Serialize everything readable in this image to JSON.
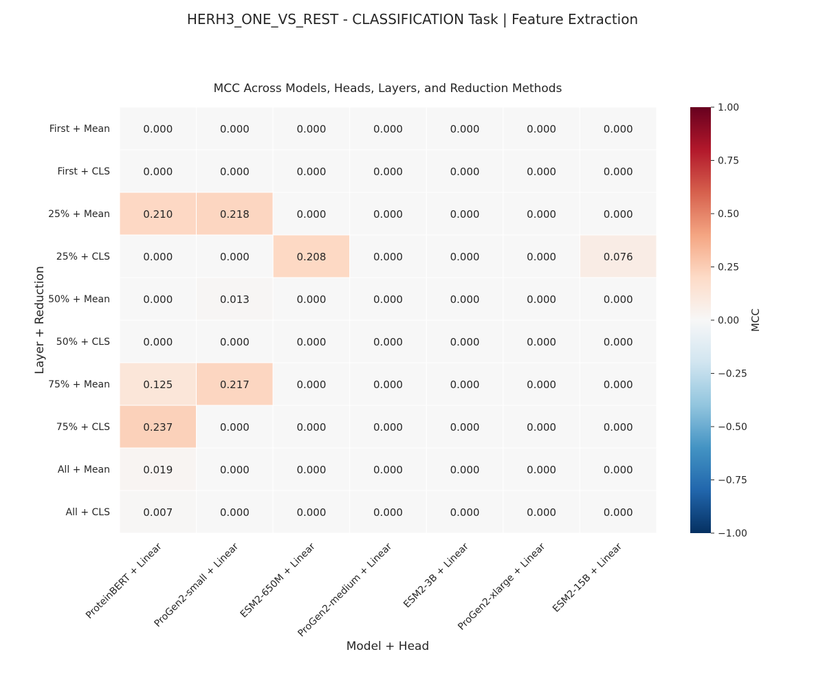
{
  "figure": {
    "suptitle": "HERH3_ONE_VS_REST - CLASSIFICATION Task | Feature Extraction"
  },
  "chart_data": {
    "type": "heatmap",
    "title": "MCC Across Models, Heads, Layers, and Reduction Methods",
    "xlabel": "Model + Head",
    "ylabel": "Layer + Reduction",
    "x_categories": [
      "ProteinBERT + Linear",
      "ProGen2-small + Linear",
      "ESM2-650M + Linear",
      "ProGen2-medium + Linear",
      "ESM2-3B + Linear",
      "ProGen2-xlarge + Linear",
      "ESM2-15B + Linear"
    ],
    "y_categories": [
      "First + Mean",
      "First + CLS",
      "25% + Mean",
      "25% + CLS",
      "50% + Mean",
      "50% + CLS",
      "75% + Mean",
      "75% + CLS",
      "All + Mean",
      "All + CLS"
    ],
    "values": [
      [
        0.0,
        0.0,
        0.0,
        0.0,
        0.0,
        0.0,
        0.0
      ],
      [
        0.0,
        0.0,
        0.0,
        0.0,
        0.0,
        0.0,
        0.0
      ],
      [
        0.21,
        0.218,
        0.0,
        0.0,
        0.0,
        0.0,
        0.0
      ],
      [
        0.0,
        0.0,
        0.208,
        0.0,
        0.0,
        0.0,
        0.076
      ],
      [
        0.0,
        0.013,
        0.0,
        0.0,
        0.0,
        0.0,
        0.0
      ],
      [
        0.0,
        0.0,
        0.0,
        0.0,
        0.0,
        0.0,
        0.0
      ],
      [
        0.125,
        0.217,
        0.0,
        0.0,
        0.0,
        0.0,
        0.0
      ],
      [
        0.237,
        0.0,
        0.0,
        0.0,
        0.0,
        0.0,
        0.0
      ],
      [
        0.019,
        0.0,
        0.0,
        0.0,
        0.0,
        0.0,
        0.0
      ],
      [
        0.007,
        0.0,
        0.0,
        0.0,
        0.0,
        0.0,
        0.0
      ]
    ],
    "value_format_decimals": 3,
    "colormap": "RdBu_r",
    "vmin": -1.0,
    "vmax": 1.0,
    "colorbar": {
      "label": "MCC",
      "ticks": [
        1.0,
        0.75,
        0.5,
        0.25,
        0.0,
        -0.25,
        -0.5,
        -0.75,
        -1.0
      ],
      "tick_labels": [
        "1.00",
        "0.75",
        "0.50",
        "0.25",
        "0.00",
        "−0.25",
        "−0.50",
        "−0.75",
        "−1.00"
      ]
    }
  }
}
